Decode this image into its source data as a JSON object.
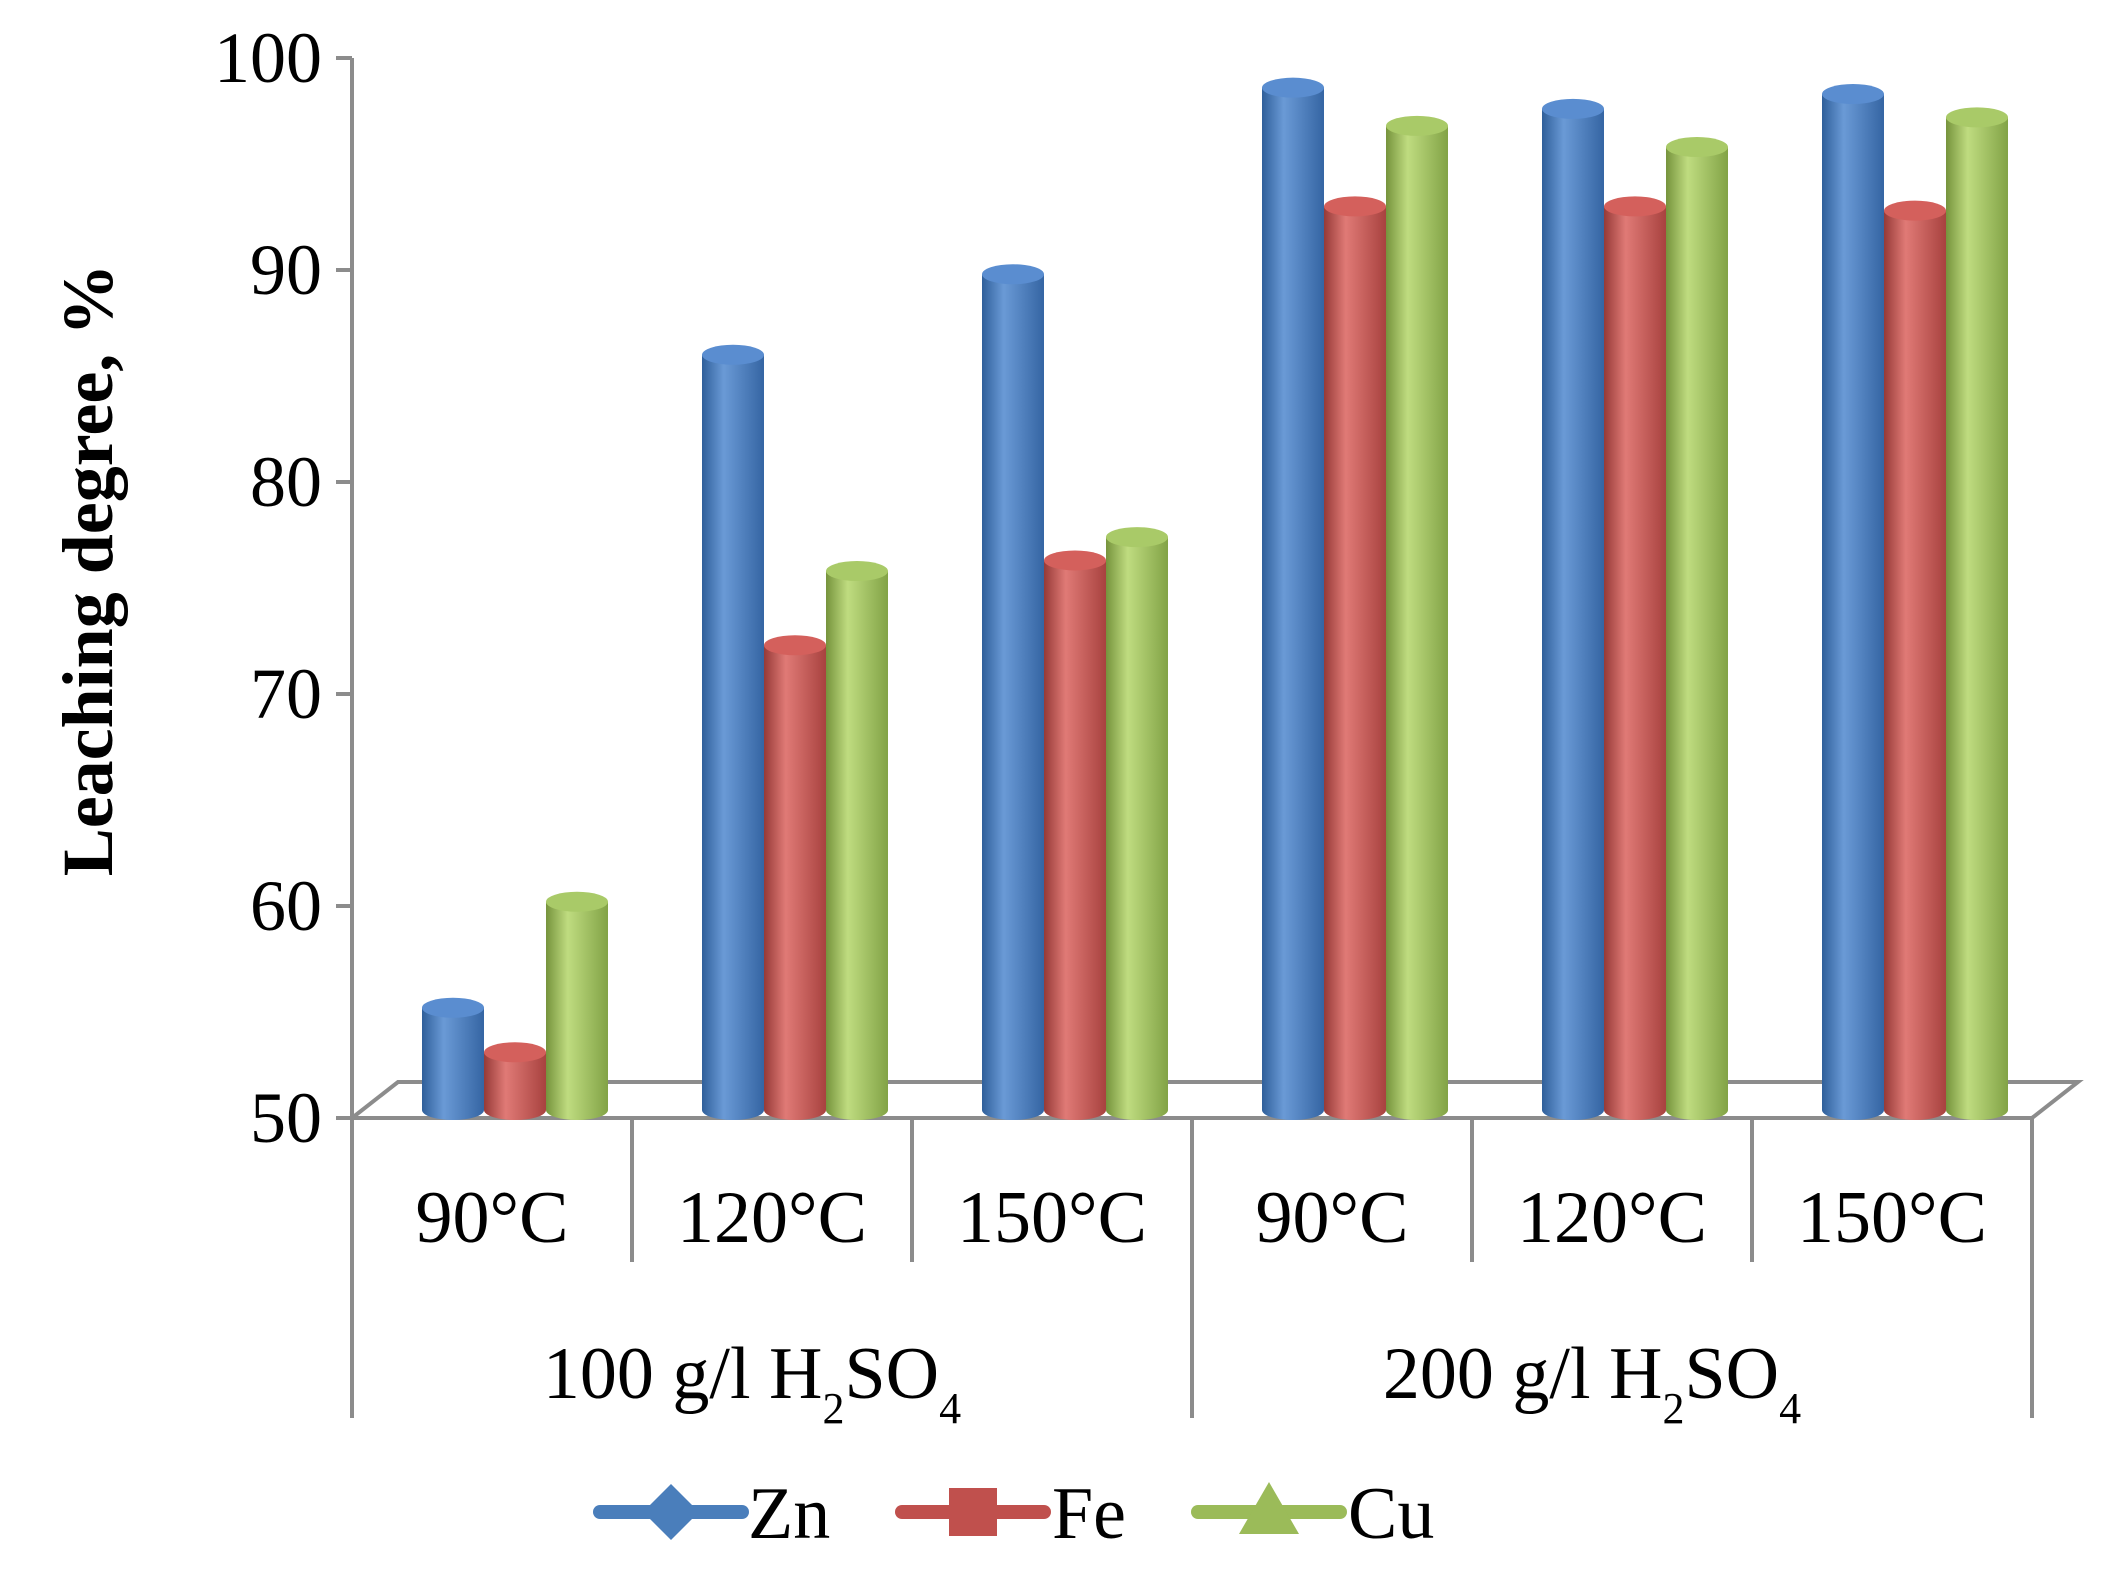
{
  "chart_data": {
    "type": "bar",
    "ylabel": "Leaching degree, %",
    "ylim": [
      50,
      100
    ],
    "yticks": [
      "50",
      "60",
      "70",
      "80",
      "90",
      "100"
    ],
    "categories": [
      "90°C",
      "120°C",
      "150°C",
      "90°C",
      "120°C",
      "150°C"
    ],
    "groups": [
      {
        "label": "100 g/l H",
        "sub1": "2",
        "mid": "SO",
        "sub2": "4",
        "span": 3
      },
      {
        "label": "200 g/l H",
        "sub1": "2",
        "mid": "SO",
        "sub2": "4",
        "span": 3
      }
    ],
    "series": [
      {
        "name": "Zn",
        "color": "#4a7ebb",
        "marker": "diamond",
        "values": [
          55.2,
          86.0,
          89.8,
          98.6,
          97.6,
          98.3
        ]
      },
      {
        "name": "Fe",
        "color": "#c0504d",
        "marker": "square",
        "values": [
          53.1,
          72.3,
          76.3,
          93.0,
          93.0,
          92.8
        ]
      },
      {
        "name": "Cu",
        "color": "#9bbb59",
        "marker": "triangle",
        "values": [
          60.2,
          75.8,
          77.4,
          96.8,
          95.8,
          97.2
        ]
      }
    ]
  }
}
